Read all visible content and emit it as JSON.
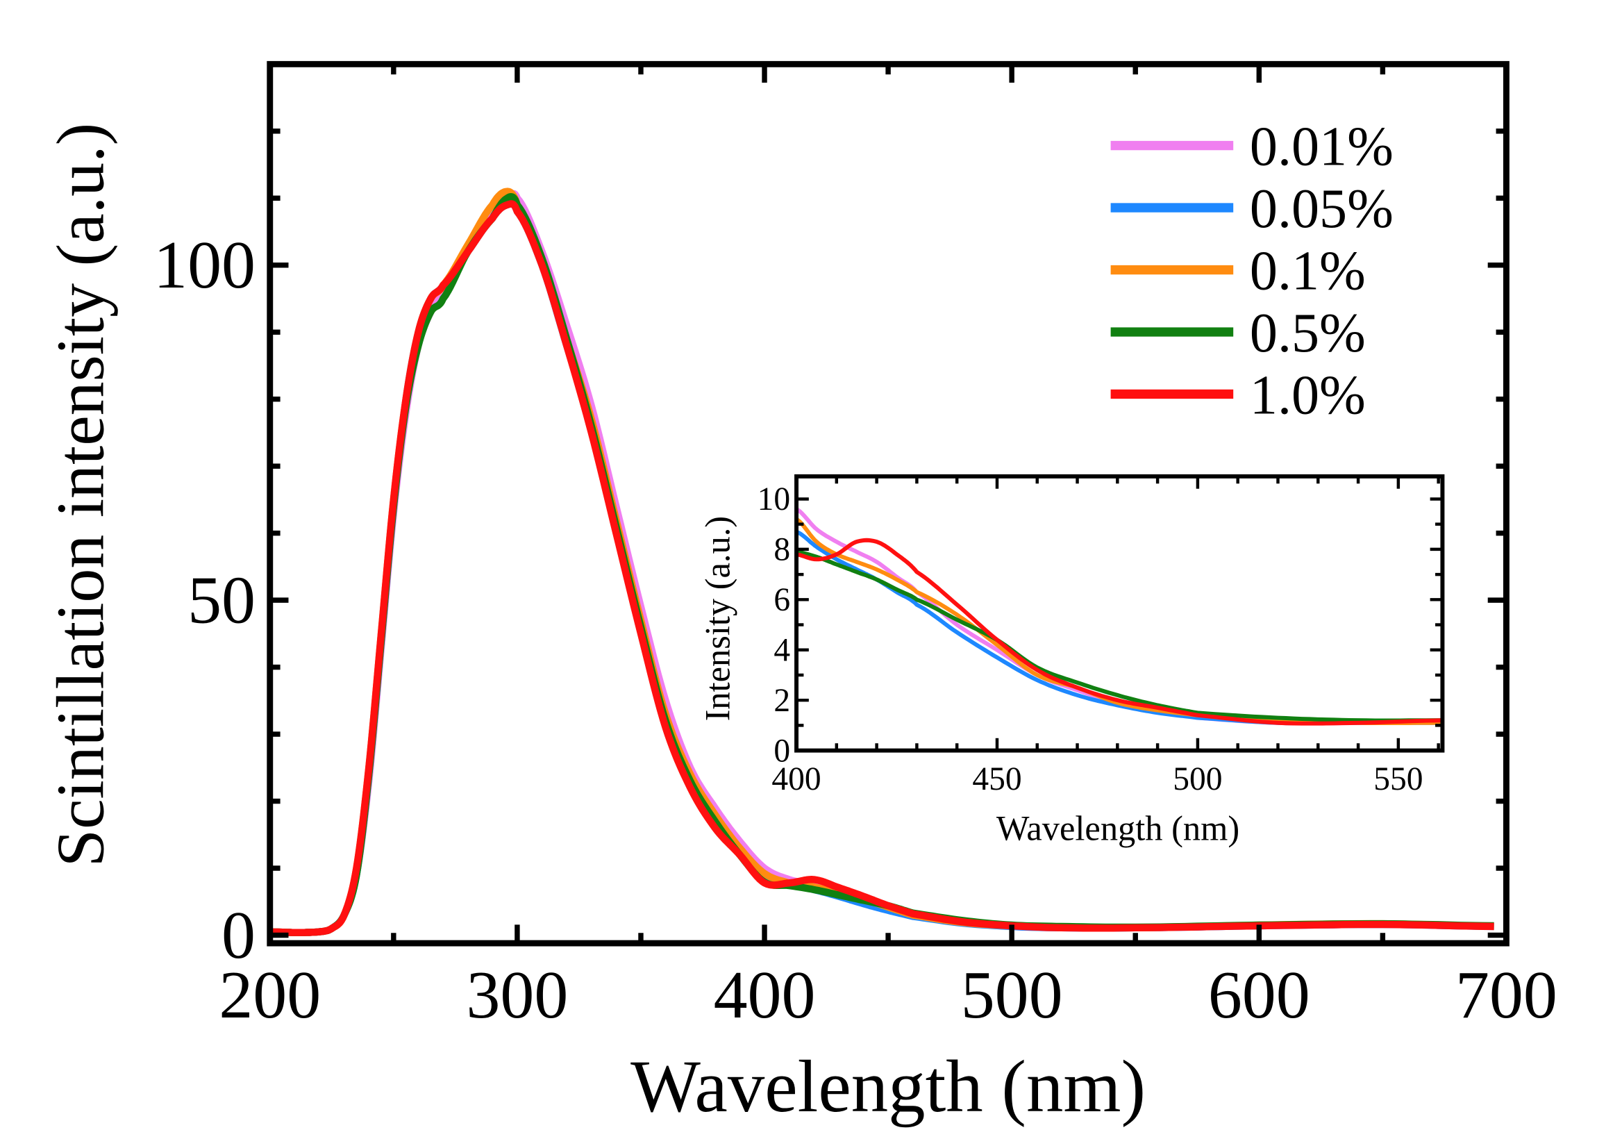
{
  "chart_data": [
    {
      "type": "line",
      "xlabel": "Wavelength (nm)",
      "ylabel": "Scintillation intensity (a.u.)",
      "xlim": [
        200,
        700
      ],
      "ylim": [
        -1.2,
        130
      ],
      "xticks": [
        200,
        300,
        400,
        500,
        600,
        700
      ],
      "yticks": [
        0,
        50,
        100
      ],
      "grid": false,
      "legend_position": "top-right",
      "x": [
        200,
        210,
        220,
        225,
        230,
        235,
        240,
        245,
        250,
        255,
        260,
        265,
        270,
        280,
        290,
        296,
        300,
        310,
        320,
        330,
        340,
        350,
        360,
        370,
        380,
        390,
        400,
        410,
        420,
        430,
        440,
        450,
        460,
        480,
        500,
        520,
        550,
        600,
        650,
        695
      ],
      "series": [
        {
          "name": "0.01%",
          "color": "#f07ff0",
          "values": [
            0.5,
            0.4,
            0.5,
            1,
            3,
            9,
            23,
            43,
            63,
            78,
            88,
            93,
            96,
            102,
            108,
            110,
            110,
            102,
            91,
            79,
            64,
            49,
            35,
            25,
            19,
            14,
            10,
            8.3,
            7.5,
            6.3,
            5.0,
            4.0,
            3.0,
            1.9,
            1.3,
            1.1,
            1.1,
            1.4,
            1.6,
            1.3
          ]
        },
        {
          "name": "0.05%",
          "color": "#1e88ff",
          "values": [
            0.5,
            0.4,
            0.5,
            1,
            3,
            9,
            24,
            44,
            64,
            80,
            90,
            95,
            97,
            102,
            107,
            109,
            108,
            100,
            88,
            76,
            61,
            46,
            32,
            23,
            17,
            12.5,
            8.7,
            7.6,
            6.8,
            5.8,
            4.7,
            3.7,
            2.8,
            1.8,
            1.3,
            1.1,
            1.1,
            1.4,
            1.6,
            1.3
          ]
        },
        {
          "name": "0.1%",
          "color": "#ff8c10",
          "values": [
            0.5,
            0.4,
            0.5,
            1,
            3,
            10,
            25,
            45,
            65,
            80,
            90,
            95,
            97,
            103,
            109,
            111,
            109,
            101,
            89,
            77,
            62,
            47,
            33,
            24,
            18,
            13,
            9.2,
            7.8,
            7.2,
            6.3,
            5.4,
            4.2,
            3.0,
            1.9,
            1.4,
            1.2,
            1.1,
            1.5,
            1.7,
            1.3
          ]
        },
        {
          "name": "0.5%",
          "color": "#118011",
          "values": [
            0.5,
            0.4,
            0.5,
            1,
            3,
            9,
            24,
            44,
            64,
            79,
            88,
            93,
            95,
            102,
            107,
            110,
            109,
            101,
            89,
            76,
            61,
            46,
            32,
            23,
            17,
            12,
            7.9,
            7.4,
            6.8,
            6.0,
            5.2,
            4.4,
            3.3,
            2.2,
            1.5,
            1.3,
            1.2,
            1.5,
            1.7,
            1.4
          ]
        },
        {
          "name": "1.0%",
          "color": "#ff1010",
          "values": [
            0.5,
            0.4,
            0.5,
            1,
            3,
            10,
            25,
            45,
            65,
            80,
            90,
            95,
            97,
            102,
            107,
            109,
            108,
            100,
            88,
            75,
            60,
            45,
            31,
            22,
            16,
            12,
            7.8,
            7.8,
            8.3,
            7.1,
            5.8,
            4.4,
            3.2,
            2.0,
            1.4,
            1.1,
            1.1,
            1.4,
            1.6,
            1.3
          ]
        }
      ]
    },
    {
      "type": "line",
      "xlabel": "Wavelength (nm)",
      "ylabel": "Intensity (a.u.)",
      "xlim": [
        400,
        561
      ],
      "ylim": [
        0,
        10.9
      ],
      "xticks": [
        400,
        450,
        500,
        550
      ],
      "yticks": [
        0,
        2,
        4,
        6,
        8,
        10
      ],
      "grid": false,
      "x": [
        400,
        405,
        410,
        415,
        420,
        425,
        430,
        440,
        450,
        460,
        470,
        480,
        490,
        500,
        520,
        540,
        561
      ],
      "series": [
        {
          "name": "0.01%",
          "color": "#f07ff0",
          "values": [
            9.6,
            8.8,
            8.3,
            7.9,
            7.5,
            6.9,
            6.3,
            5.0,
            4.0,
            3.0,
            2.4,
            1.9,
            1.6,
            1.3,
            1.1,
            1.1,
            1.2
          ]
        },
        {
          "name": "0.05%",
          "color": "#1e88ff",
          "values": [
            8.7,
            8.1,
            7.6,
            7.2,
            6.8,
            6.3,
            5.8,
            4.7,
            3.7,
            2.8,
            2.2,
            1.8,
            1.5,
            1.3,
            1.1,
            1.1,
            1.1
          ]
        },
        {
          "name": "0.1%",
          "color": "#ff8c10",
          "values": [
            9.2,
            8.3,
            7.8,
            7.5,
            7.2,
            6.8,
            6.3,
            5.4,
            4.2,
            3.0,
            2.5,
            1.9,
            1.6,
            1.4,
            1.2,
            1.1,
            1.1
          ]
        },
        {
          "name": "0.5%",
          "color": "#118011",
          "values": [
            7.9,
            7.7,
            7.4,
            7.1,
            6.8,
            6.4,
            6.0,
            5.2,
            4.4,
            3.3,
            2.7,
            2.2,
            1.8,
            1.5,
            1.3,
            1.2,
            1.2
          ]
        },
        {
          "name": "1.0%",
          "color": "#ff1010",
          "values": [
            7.8,
            7.6,
            7.8,
            8.3,
            8.3,
            7.8,
            7.1,
            5.8,
            4.4,
            3.2,
            2.5,
            2.0,
            1.7,
            1.4,
            1.1,
            1.1,
            1.2
          ]
        }
      ]
    }
  ]
}
